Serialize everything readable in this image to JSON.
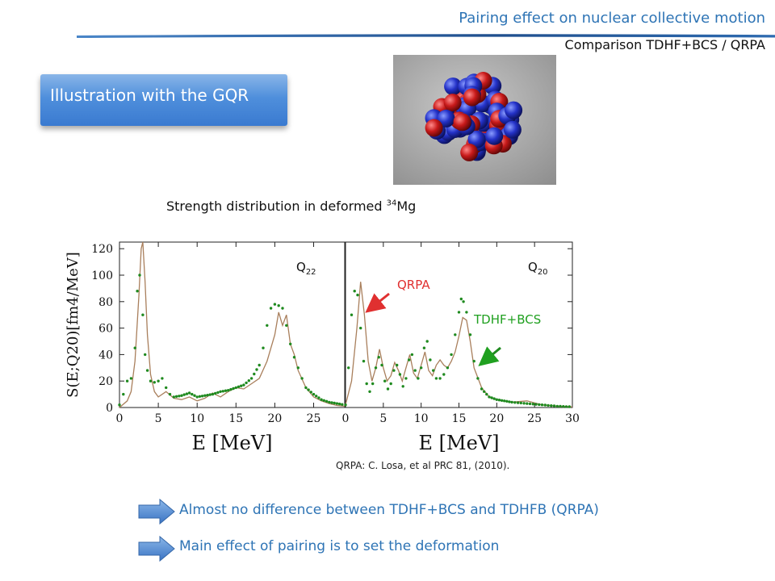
{
  "header": {
    "title": "Pairing effect on nuclear collective motion",
    "subtitle": "Comparison TDHF+BCS / QRPA"
  },
  "box": {
    "label": "Illustration with the GQR"
  },
  "plot_title": {
    "text": "Strength distribution in deformed ",
    "mass": "34",
    "element": "Mg"
  },
  "reference": "QRPA: C. Losa, et al PRC 81, (2010).",
  "bullets": [
    "Almost no difference between TDHF+BCS and TDHFB (QRPA)",
    "Main effect of pairing is to set the deformation"
  ],
  "colors": {
    "accent": "#2e74b5",
    "qrpa": "#a97f5c",
    "tdhf": "#1f8a1f",
    "qrpa_label": "#e03030",
    "tdhf_label": "#20a020"
  },
  "chart_data": [
    {
      "type": "line",
      "panel_label": "Q22",
      "ylabel": "S(E;Q20)[fm4/MeV]",
      "xlabel": "E [MeV]",
      "xlim": [
        0,
        29
      ],
      "ylim": [
        0,
        125
      ],
      "xticks": [
        "0",
        "5",
        "10",
        "15",
        "20",
        "25"
      ],
      "yticks": [
        "0",
        "20",
        "40",
        "60",
        "80",
        "100",
        "120"
      ],
      "series": [
        {
          "name": "QRPA",
          "style": "line",
          "x": [
            0,
            1,
            1.5,
            2,
            2.5,
            2.8,
            3,
            3.3,
            3.6,
            4,
            4.5,
            5,
            6,
            7,
            8,
            9,
            10,
            11,
            12,
            13,
            14,
            15,
            16,
            17,
            18,
            19,
            19.5,
            20,
            20.5,
            21,
            21.5,
            22,
            22.5,
            23,
            24,
            25,
            26,
            27,
            28,
            29
          ],
          "y": [
            0,
            5,
            12,
            35,
            85,
            120,
            128,
            95,
            55,
            25,
            12,
            8,
            12,
            7,
            6,
            8,
            5,
            7,
            11,
            8,
            12,
            15,
            14,
            18,
            22,
            35,
            45,
            55,
            72,
            62,
            70,
            48,
            40,
            28,
            15,
            8,
            5,
            3,
            1.5,
            1
          ]
        },
        {
          "name": "TDHF+BCS",
          "style": "dots",
          "x": [
            0,
            0.5,
            1,
            1.5,
            2,
            2.3,
            2.6,
            3,
            3.3,
            3.6,
            4,
            4.5,
            5,
            5.5,
            6,
            6.5,
            7,
            8,
            9,
            10,
            11,
            12,
            13,
            14,
            15,
            16,
            17,
            18,
            18.5,
            19,
            19.5,
            20,
            20.5,
            21,
            21.5,
            22,
            22.5,
            23,
            23.5,
            24,
            25,
            26,
            27,
            28,
            29
          ],
          "y": [
            2,
            10,
            20,
            22,
            45,
            88,
            100,
            70,
            40,
            28,
            20,
            19,
            20,
            22,
            15,
            10,
            8,
            9,
            11,
            8,
            9,
            10,
            12,
            13,
            15,
            17,
            22,
            32,
            45,
            62,
            75,
            78,
            77,
            75,
            62,
            48,
            38,
            30,
            22,
            15,
            10,
            6,
            4,
            3,
            2
          ]
        }
      ]
    },
    {
      "type": "line",
      "panel_label": "Q20",
      "xlabel": "E [MeV]",
      "xlim": [
        0,
        30
      ],
      "ylim": [
        0,
        125
      ],
      "xticks": [
        "0",
        "5",
        "10",
        "15",
        "20",
        "25",
        "30"
      ],
      "annotations": [
        "QRPA",
        "TDHF+BCS"
      ],
      "series": [
        {
          "name": "QRPA",
          "style": "line",
          "x": [
            0,
            0.8,
            1.5,
            2,
            2.5,
            3,
            3.5,
            4,
            4.5,
            5,
            5.5,
            6,
            6.5,
            7,
            7.5,
            8,
            8.5,
            9,
            9.5,
            10,
            10.5,
            11,
            11.5,
            12,
            12.5,
            13,
            13.5,
            14,
            14.5,
            15,
            15.5,
            16,
            16.5,
            17,
            18,
            19,
            20,
            22,
            24,
            26,
            28,
            30
          ],
          "y": [
            2,
            20,
            60,
            95,
            70,
            35,
            20,
            30,
            44,
            30,
            20,
            24,
            34,
            28,
            20,
            30,
            40,
            26,
            22,
            32,
            42,
            28,
            24,
            32,
            36,
            32,
            30,
            35,
            42,
            54,
            68,
            66,
            50,
            30,
            15,
            8,
            6,
            4,
            5,
            2,
            1,
            0.5
          ]
        },
        {
          "name": "TDHF+BCS",
          "style": "dots",
          "x": [
            0,
            0.4,
            0.8,
            1.2,
            1.6,
            2,
            2.4,
            2.8,
            3.2,
            3.6,
            4,
            4.4,
            4.8,
            5.2,
            5.6,
            6,
            6.4,
            6.8,
            7.2,
            7.6,
            8,
            8.4,
            8.8,
            9.2,
            9.6,
            10,
            10.4,
            10.8,
            11.2,
            11.6,
            12,
            12.5,
            13,
            13.5,
            14,
            14.5,
            15,
            15.3,
            15.6,
            16,
            16.5,
            17,
            17.5,
            18,
            19,
            20,
            21,
            22,
            24,
            26,
            28,
            30
          ],
          "y": [
            2,
            30,
            70,
            88,
            85,
            60,
            35,
            18,
            12,
            18,
            30,
            38,
            32,
            20,
            14,
            18,
            28,
            32,
            25,
            16,
            22,
            36,
            40,
            28,
            22,
            30,
            45,
            50,
            36,
            28,
            22,
            22,
            25,
            30,
            40,
            55,
            72,
            82,
            80,
            72,
            55,
            35,
            22,
            14,
            8,
            6,
            5,
            4,
            3,
            2,
            1,
            0.5
          ]
        }
      ]
    }
  ]
}
